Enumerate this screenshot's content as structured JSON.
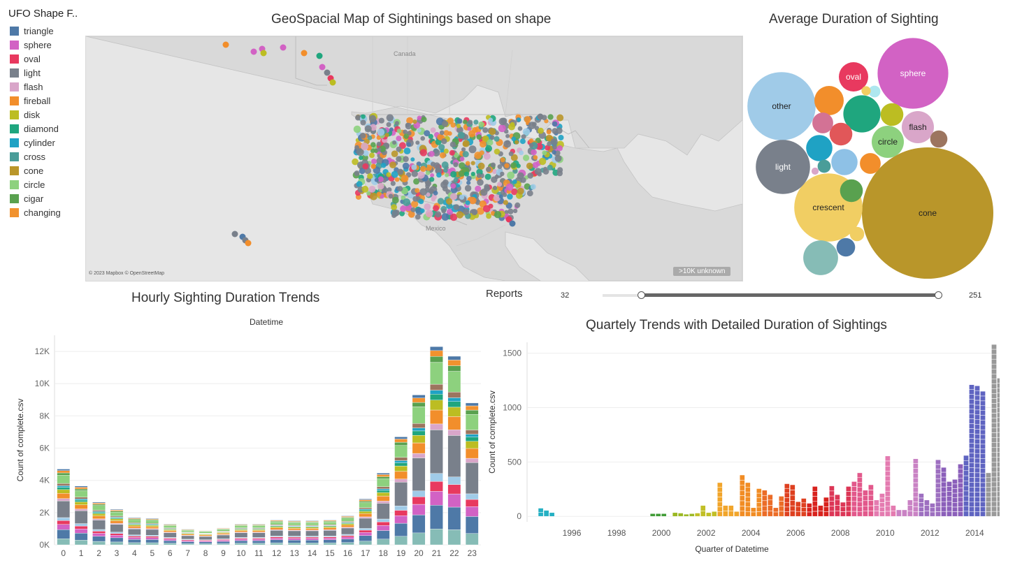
{
  "legend": {
    "title": "UFO Shape F..",
    "items": [
      {
        "label": "triangle",
        "color": "#4e79a7"
      },
      {
        "label": "sphere",
        "color": "#d262c4"
      },
      {
        "label": "oval",
        "color": "#e8395f"
      },
      {
        "label": "light",
        "color": "#79808b"
      },
      {
        "label": "flash",
        "color": "#d9a6c9"
      },
      {
        "label": "fireball",
        "color": "#f28e2b"
      },
      {
        "label": "disk",
        "color": "#bcbd22"
      },
      {
        "label": "diamond",
        "color": "#1fa67e"
      },
      {
        "label": "cylinder",
        "color": "#1fa2c4"
      },
      {
        "label": "cross",
        "color": "#4a9d99"
      },
      {
        "label": "cone",
        "color": "#b9962a"
      },
      {
        "label": "circle",
        "color": "#8dd17e"
      },
      {
        "label": "cigar",
        "color": "#59a14f"
      },
      {
        "label": "changing",
        "color": "#f1922f"
      }
    ]
  },
  "map": {
    "title": "GeoSpacial Map of Sightinings based on shape",
    "labels": {
      "canada": "Canada",
      "mexico": "Mexico"
    },
    "credit": "© 2023 Mapbox © OpenStreetMap",
    "unknown_badge": ">10K unknown",
    "colors": {
      "land": "#d9d9d9",
      "water": "#e6e6e6",
      "border": "#bdbdbd"
    }
  },
  "bubble": {
    "title": "Average Duration of Sighting",
    "bubbles": [
      {
        "label": "cone",
        "color": "#b9962a",
        "value": 100
      },
      {
        "label": "other",
        "color": "#a0cbe8",
        "value": 27
      },
      {
        "label": "sphere",
        "color": "#d262c4",
        "value": 29
      },
      {
        "label": "crescent",
        "color": "#f1ce63",
        "value": 27
      },
      {
        "label": "light",
        "color": "#79808b",
        "value": 17
      },
      {
        "label": "oval",
        "color": "#e8395f",
        "value": 5
      },
      {
        "label": "flash",
        "color": "#d9a6c9",
        "value": 6
      },
      {
        "label": "circle",
        "color": "#8dd17e",
        "value": 6
      },
      {
        "label": "",
        "color": "#1fa67e",
        "value": 8
      },
      {
        "label": "",
        "color": "#f28e2b",
        "value": 5
      },
      {
        "label": "",
        "color": "#1fa2c4",
        "value": 4
      },
      {
        "label": "",
        "color": "#8ec1e6",
        "value": 4
      },
      {
        "label": "",
        "color": "#86bcb6",
        "value": 7
      },
      {
        "label": "",
        "color": "#e15759",
        "value": 3
      },
      {
        "label": "",
        "color": "#bcbd22",
        "value": 3
      },
      {
        "label": "",
        "color": "#59a14f",
        "value": 3
      },
      {
        "label": "",
        "color": "#d37295",
        "value": 2.5
      },
      {
        "label": "",
        "color": "#f28e2b",
        "value": 2.5
      },
      {
        "label": "",
        "color": "#4e79a7",
        "value": 2
      },
      {
        "label": "",
        "color": "#9c755f",
        "value": 1.7
      },
      {
        "label": "",
        "color": "#f1ce63",
        "value": 1.2
      },
      {
        "label": "",
        "color": "#4a9d99",
        "value": 1
      },
      {
        "label": "",
        "color": "#aee7ef",
        "value": 0.8
      },
      {
        "label": "",
        "color": "#f1ce63",
        "value": 0.5
      },
      {
        "label": "",
        "color": "#d9a6c9",
        "value": 0.3
      }
    ]
  },
  "slider": {
    "label": "Reports",
    "min": "32",
    "max": "251",
    "min_value": 32,
    "max_value": 251,
    "low_fraction": 0.115,
    "high_fraction": 0.99
  },
  "chart_data": [
    {
      "type": "bar",
      "title": "Hourly Sighting Duration Trends",
      "subtitle": "Datetime",
      "ylabel": "Count of complete.csv",
      "ylim": [
        0,
        13000
      ],
      "yticks": [
        0,
        2000,
        4000,
        6000,
        8000,
        10000,
        12000
      ],
      "ytick_labels": [
        "0K",
        "2K",
        "4K",
        "6K",
        "8K",
        "10K",
        "12K"
      ],
      "categories": [
        "0",
        "1",
        "2",
        "3",
        "4",
        "5",
        "6",
        "7",
        "8",
        "9",
        "10",
        "11",
        "12",
        "13",
        "14",
        "15",
        "16",
        "17",
        "18",
        "19",
        "20",
        "21",
        "22",
        "23"
      ],
      "values": [
        4700,
        3650,
        2650,
        2200,
        1700,
        1650,
        1300,
        980,
        900,
        1050,
        1300,
        1300,
        1550,
        1500,
        1500,
        1550,
        1800,
        2850,
        4450,
        6700,
        9300,
        12300,
        11700,
        8800
      ],
      "stack_order": [
        "cross",
        "triangle",
        "sphere",
        "oval",
        "other",
        "light",
        "flash",
        "fireball",
        "disk",
        "diamond",
        "cylinder",
        "cone",
        "circle",
        "cigar",
        "changing",
        "triangle"
      ],
      "stack_share": [
        0.08,
        0.12,
        0.07,
        0.05,
        0.04,
        0.22,
        0.03,
        0.07,
        0.05,
        0.03,
        0.02,
        0.03,
        0.11,
        0.03,
        0.03,
        0.02
      ],
      "stack_colors": [
        "#86bcb6",
        "#4e79a7",
        "#d262c4",
        "#e8395f",
        "#a0cbe8",
        "#79808b",
        "#d9a6c9",
        "#f28e2b",
        "#bcbd22",
        "#1fa67e",
        "#1fa2c4",
        "#9c755f",
        "#8dd17e",
        "#59a14f",
        "#f1922f",
        "#4e79a7"
      ],
      "grid": true
    },
    {
      "type": "bar",
      "title": "Quartely Trends with Detailed Duration of Sightings",
      "xlabel": "Quarter of Datetime",
      "ylabel": "Count of complete.csv",
      "ylim": [
        -50,
        1600
      ],
      "yticks": [
        0,
        500,
        1000,
        1500
      ],
      "xticks": [
        "1996",
        "1998",
        "2000",
        "2002",
        "2004",
        "2006",
        "2008",
        "2010",
        "2012",
        "2014"
      ],
      "x_start": 1995.0,
      "x_step": 0.25,
      "values": [
        75,
        55,
        35,
        0,
        0,
        0,
        0,
        0,
        0,
        0,
        0,
        0,
        0,
        0,
        0,
        0,
        0,
        0,
        0,
        0,
        25,
        25,
        25,
        0,
        35,
        30,
        20,
        25,
        30,
        100,
        35,
        45,
        310,
        100,
        100,
        45,
        380,
        310,
        80,
        255,
        240,
        200,
        80,
        185,
        300,
        290,
        135,
        165,
        120,
        275,
        100,
        175,
        280,
        200,
        130,
        275,
        320,
        400,
        240,
        290,
        150,
        210,
        555,
        100,
        60,
        60,
        150,
        530,
        210,
        150,
        120,
        520,
        450,
        320,
        340,
        480,
        560,
        1210,
        1200,
        1150,
        400,
        1580,
        1270,
        920,
        200
      ],
      "year_colors": {
        "1995": "#25b0c3",
        "1996": "#25b0c3",
        "2000": "#3f9b35",
        "2001": "#9bb823",
        "2002": "#c1bf27",
        "2003": "#f1a52b",
        "2004": "#f18c24",
        "2005": "#eb6c27",
        "2006": "#de4020",
        "2007": "#d8221d",
        "2008": "#dc3656",
        "2009": "#e2588b",
        "2010": "#e47bb0",
        "2011": "#c982c4",
        "2012": "#9d6fc0",
        "2013": "#8b5fba",
        "2014": "#5f64c1"
      },
      "grid": true
    }
  ]
}
